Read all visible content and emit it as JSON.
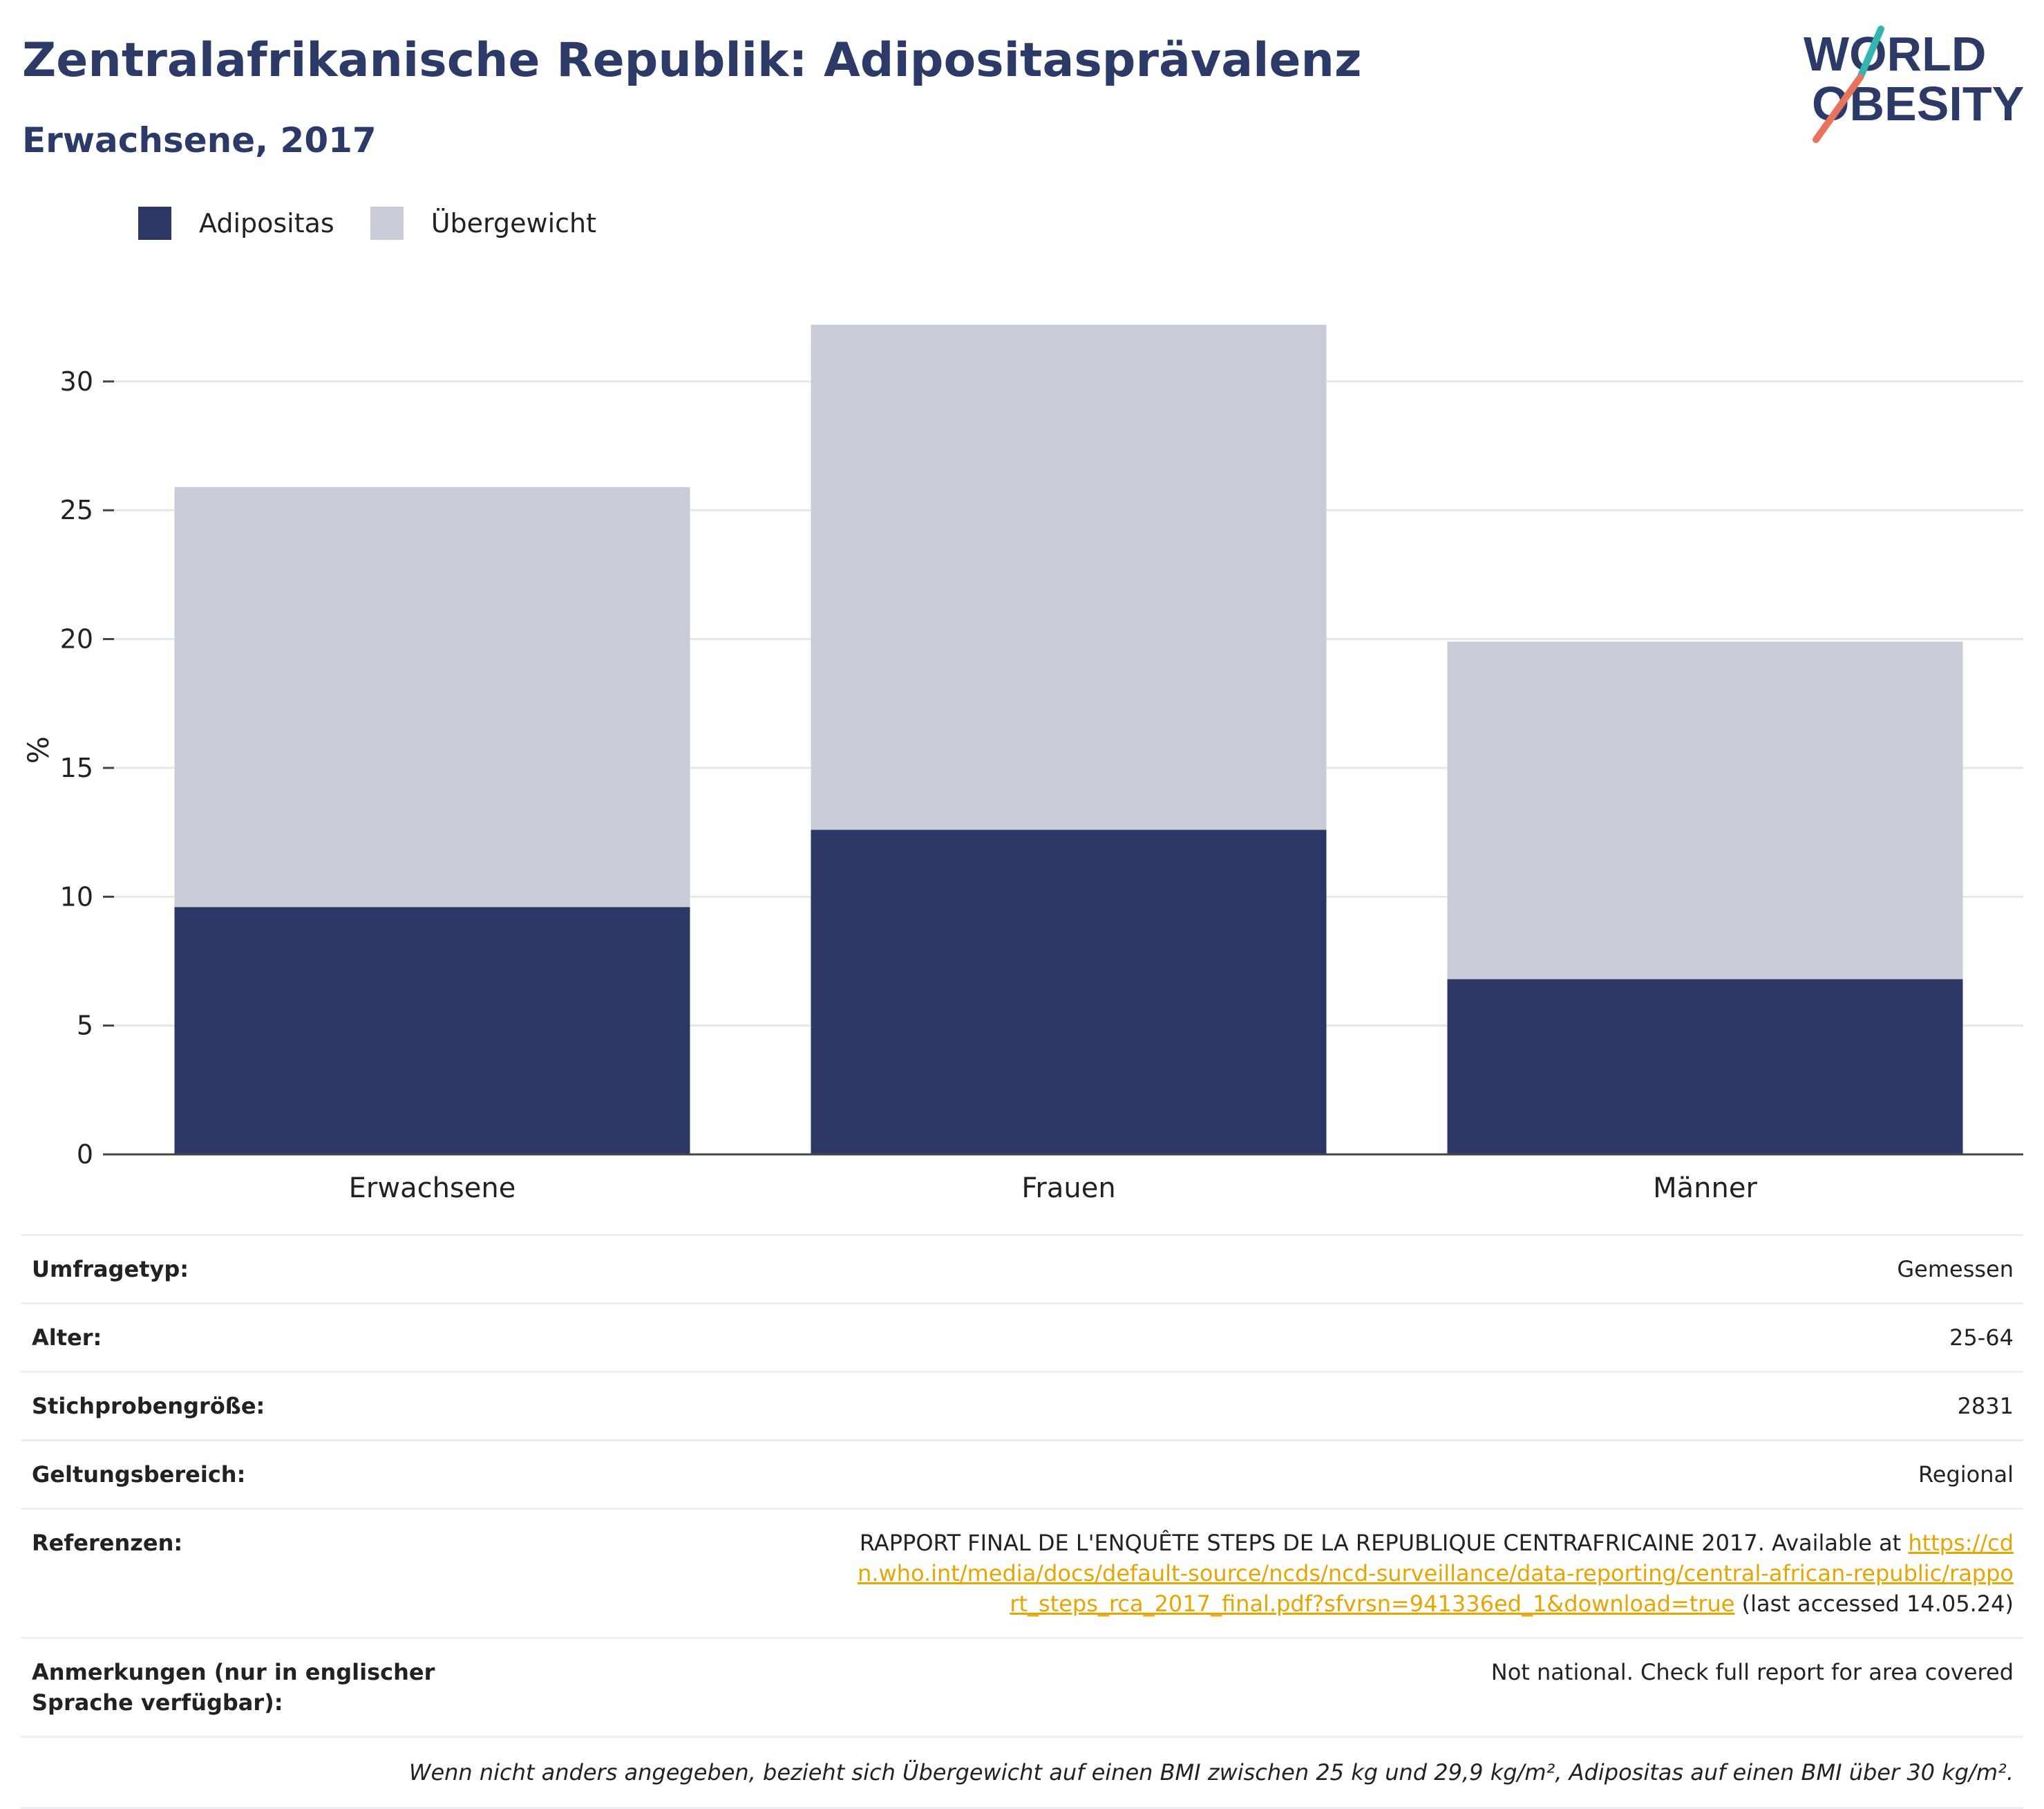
{
  "header": {
    "title": "Zentralafrikanische Republik: Adipositasprävalenz",
    "subtitle": "Erwachsene, 2017"
  },
  "logo": {
    "line1": "WORLD",
    "line2": "OBESITY",
    "icon": "world-obesity-logo-icon"
  },
  "colors": {
    "adipositas": "#2b3764",
    "uebergewicht": "#c9cbd6",
    "title": "#2b3a67",
    "link": "#e8a400",
    "logo_teal": "#35b5b0",
    "logo_coral": "#e8735d"
  },
  "chart_data": {
    "type": "bar",
    "stacked": true,
    "categories": [
      "Erwachsene",
      "Frauen",
      "Männer"
    ],
    "series": [
      {
        "name": "Adipositas",
        "values": [
          9.6,
          12.6,
          6.8
        ]
      },
      {
        "name": "Übergewicht",
        "values": [
          16.3,
          19.6,
          13.1
        ]
      }
    ],
    "ylabel": "%",
    "ylim": [
      0,
      33
    ],
    "yticks": [
      0,
      5,
      10,
      15,
      20,
      25,
      30
    ],
    "grid": true,
    "legend_position": "top-left"
  },
  "info": {
    "survey_type": {
      "label": "Umfragetyp:",
      "value": "Gemessen"
    },
    "age": {
      "label": "Alter:",
      "value": "25-64"
    },
    "sample_size": {
      "label": "Stichprobengröße:",
      "value": "2831"
    },
    "scope": {
      "label": "Geltungsbereich:",
      "value": "Regional"
    },
    "references": {
      "label": "Referenzen:",
      "text": "RAPPORT FINAL DE L'ENQUÊTE STEPS DE LA REPUBLIQUE CENTRAFRICAINE 2017. Available at",
      "link": "https://cdn.who.int/media/docs/default-source/ncds/ncd-surveillance/data-reporting/central-african-republic/rapport_steps_rca_2017_final.pdf?sfvrsn=941336ed_1&download=true",
      "suffix": "(last accessed 14.05.24)"
    },
    "notes": {
      "label": "Anmerkungen (nur in englischer Sprache verfügbar):",
      "value": "Not national. Check full report for area covered"
    },
    "footnote": "Wenn nicht anders angegeben, bezieht sich Übergewicht auf einen BMI zwischen 25 kg und 29,9 kg/m², Adipositas auf einen BMI über 30 kg/m²."
  }
}
